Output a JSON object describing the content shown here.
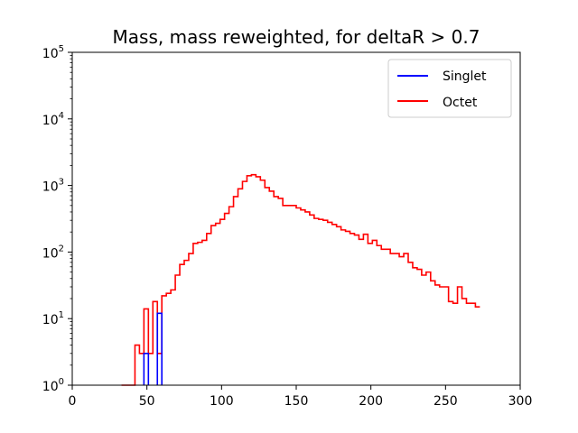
{
  "chart_data": {
    "type": "histogram-step",
    "title": "Mass, mass reweighted, for deltaR > 0.7",
    "xlabel": "",
    "ylabel": "",
    "xlim": [
      0,
      300
    ],
    "ylim": [
      1,
      100000
    ],
    "yscale": "log",
    "xticks": [
      0,
      50,
      100,
      150,
      200,
      250,
      300
    ],
    "yticks": [
      {
        "value": 1,
        "base": "10",
        "exp": "0"
      },
      {
        "value": 10,
        "base": "10",
        "exp": "1"
      },
      {
        "value": 100,
        "base": "10",
        "exp": "2"
      },
      {
        "value": 1000,
        "base": "10",
        "exp": "3"
      },
      {
        "value": 10000,
        "base": "10",
        "exp": "4"
      },
      {
        "value": 100000,
        "base": "10",
        "exp": "5"
      }
    ],
    "legend_position": "top-right",
    "series": [
      {
        "name": "Singlet",
        "color": "#0000ff",
        "bins": [
          {
            "x0": 48,
            "x1": 51,
            "y": 3
          },
          {
            "x0": 57,
            "x1": 60,
            "y": 12
          }
        ]
      },
      {
        "name": "Octet",
        "color": "#ff0000",
        "x_start": 33,
        "bin_width": 3,
        "values": [
          1,
          1,
          1,
          4,
          3,
          14,
          3,
          18,
          3,
          22,
          24,
          27,
          45,
          65,
          75,
          95,
          135,
          140,
          150,
          190,
          250,
          270,
          310,
          380,
          480,
          680,
          890,
          1150,
          1400,
          1450,
          1350,
          1200,
          930,
          820,
          680,
          640,
          500,
          500,
          500,
          460,
          430,
          400,
          360,
          320,
          310,
          300,
          280,
          260,
          240,
          215,
          205,
          190,
          180,
          155,
          185,
          135,
          150,
          125,
          110,
          110,
          95,
          95,
          85,
          95,
          70,
          58,
          55,
          45,
          50,
          37,
          32,
          30,
          30,
          18,
          17,
          30,
          20,
          17,
          17,
          15
        ]
      }
    ]
  }
}
